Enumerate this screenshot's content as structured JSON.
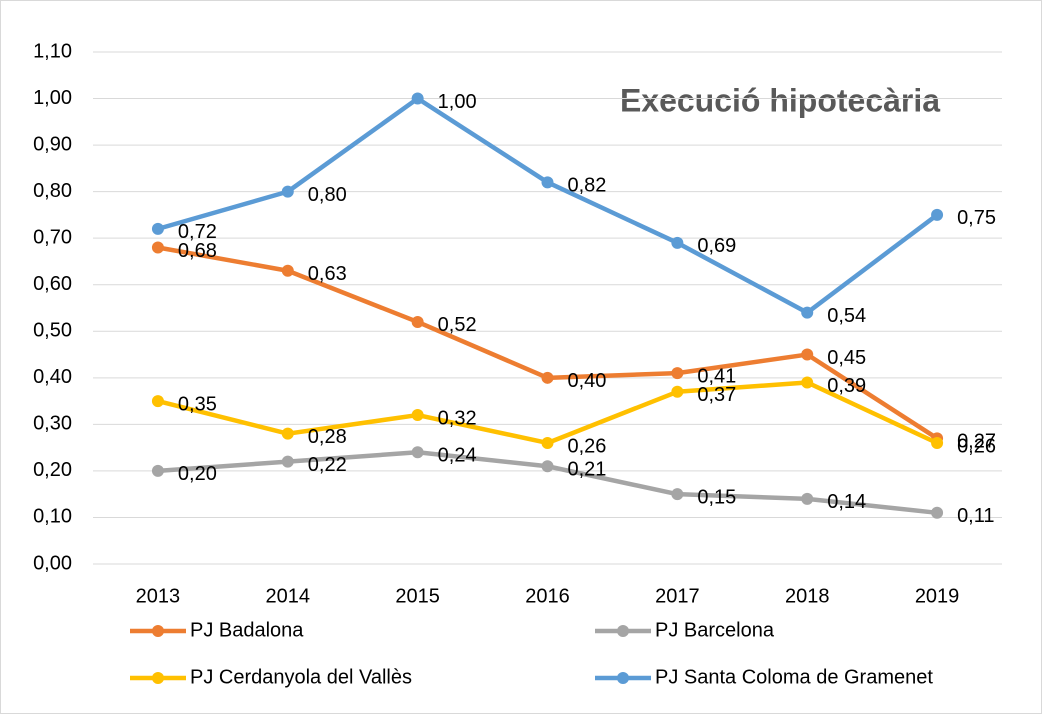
{
  "chart_data": {
    "type": "line",
    "title": "Execució hipotecària",
    "categories": [
      "2013",
      "2014",
      "2015",
      "2016",
      "2017",
      "2018",
      "2019"
    ],
    "series": [
      {
        "name": "PJ Badalona",
        "color": "#ED7D31",
        "values": [
          0.68,
          0.63,
          0.52,
          0.4,
          0.41,
          0.45,
          0.27
        ],
        "value_labels": [
          "0,68",
          "0,63",
          "0,52",
          "0,40",
          "0,41",
          "0,45",
          "0,27"
        ]
      },
      {
        "name": "PJ Barcelona",
        "color": "#A5A5A5",
        "values": [
          0.2,
          0.22,
          0.24,
          0.21,
          0.15,
          0.14,
          0.11
        ],
        "value_labels": [
          "0,20",
          "0,22",
          "0,24",
          "0,21",
          "0,15",
          "0,14",
          "0,11"
        ]
      },
      {
        "name": "PJ Cerdanyola del Vallès",
        "color": "#FFC000",
        "values": [
          0.35,
          0.28,
          0.32,
          0.26,
          0.37,
          0.39,
          0.26
        ],
        "value_labels": [
          "0,35",
          "0,28",
          "0,32",
          "0,26",
          "0,37",
          "0,39",
          "0,26"
        ]
      },
      {
        "name": "PJ Santa Coloma de Gramenet",
        "color": "#5B9BD5",
        "values": [
          0.72,
          0.8,
          1.0,
          0.82,
          0.69,
          0.54,
          0.75
        ],
        "value_labels": [
          "0,72",
          "0,80",
          "1,00",
          "0,82",
          "0,69",
          "0,54",
          "0,75"
        ]
      }
    ],
    "ylim": [
      0,
      1.1
    ],
    "yticks": [
      {
        "value": 0,
        "label": "0,00"
      },
      {
        "value": 0.1,
        "label": "0,10"
      },
      {
        "value": 0.2,
        "label": "0,20"
      },
      {
        "value": 0.3,
        "label": "0,30"
      },
      {
        "value": 0.4,
        "label": "0,40"
      },
      {
        "value": 0.5,
        "label": "0,50"
      },
      {
        "value": 0.6,
        "label": "0,60"
      },
      {
        "value": 0.7,
        "label": "0,70"
      },
      {
        "value": 0.8,
        "label": "0,80"
      },
      {
        "value": 0.9,
        "label": "0,90"
      },
      {
        "value": 1.0,
        "label": "1,00"
      },
      {
        "value": 1.1,
        "label": "1,10"
      }
    ],
    "grid": true
  }
}
